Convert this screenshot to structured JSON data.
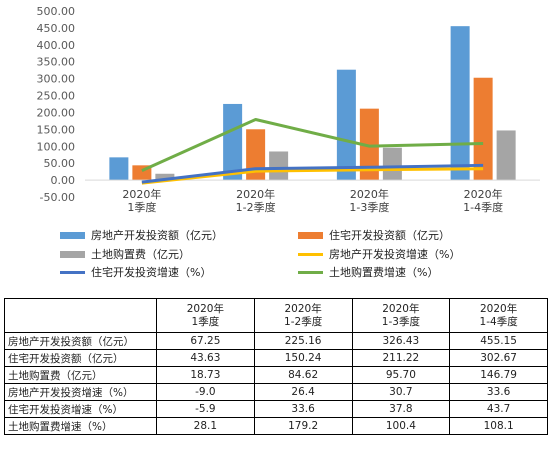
{
  "chart_data": {
    "type": "bar",
    "categories": [
      "2020年\n1季度",
      "2020年\n1-2季度",
      "2020年\n1-3季度",
      "2020年\n1-4季度"
    ],
    "y_ticks": [
      "500.00",
      "450.00",
      "400.00",
      "350.00",
      "300.00",
      "250.00",
      "200.00",
      "150.00",
      "100.00",
      "50.00",
      "0.00",
      "-50.00"
    ],
    "ylim": [
      -50,
      500
    ],
    "grid": false,
    "legend_position": "bottom",
    "bar_series": [
      {
        "name": "房地产开发投资额（亿元）",
        "color": "#5b9bd5",
        "values": [
          67.25,
          225.16,
          326.43,
          455.15
        ]
      },
      {
        "name": "住宅开发投资额（亿元）",
        "color": "#ed7d31",
        "values": [
          43.63,
          150.24,
          211.22,
          302.67
        ]
      },
      {
        "name": "土地购置费（亿元）",
        "color": "#a5a5a5",
        "values": [
          18.73,
          84.62,
          95.7,
          146.79
        ]
      }
    ],
    "line_series": [
      {
        "name": "房地产开发投资增速（%）",
        "color": "#ffc000",
        "values": [
          -9.0,
          26.4,
          30.7,
          33.6
        ]
      },
      {
        "name": "住宅开发投资增速（%）",
        "color": "#4472c4",
        "values": [
          -5.9,
          33.6,
          37.8,
          43.7
        ]
      },
      {
        "name": "土地购置费增速（%）",
        "color": "#70ad47",
        "values": [
          28.1,
          179.2,
          100.4,
          108.1
        ]
      }
    ]
  },
  "legend": [
    {
      "label": "房地产开发投资额（亿元）",
      "color": "#5b9bd5",
      "kind": "bar"
    },
    {
      "label": "住宅开发投资额（亿元）",
      "color": "#ed7d31",
      "kind": "bar"
    },
    {
      "label": "土地购置费（亿元）",
      "color": "#a5a5a5",
      "kind": "bar"
    },
    {
      "label": "房地产开发投资增速（%）",
      "color": "#ffc000",
      "kind": "line"
    },
    {
      "label": "住宅开发投资增速（%）",
      "color": "#4472c4",
      "kind": "line"
    },
    {
      "label": "土地购置费增速（%）",
      "color": "#70ad47",
      "kind": "line"
    }
  ],
  "table": {
    "headers": [
      "",
      "2020年\n1季度",
      "2020年\n1-2季度",
      "2020年\n1-3季度",
      "2020年\n1-4季度"
    ],
    "rows": [
      {
        "label": "房地产开发投资额（亿元）",
        "values": [
          "67.25",
          "225.16",
          "326.43",
          "455.15"
        ]
      },
      {
        "label": "住宅开发投资额（亿元）",
        "values": [
          "43.63",
          "150.24",
          "211.22",
          "302.67"
        ]
      },
      {
        "label": "土地购置费（亿元）",
        "values": [
          "18.73",
          "84.62",
          "95.70",
          "146.79"
        ]
      },
      {
        "label": "房地产开发投资增速（%）",
        "values": [
          "-9.0",
          "26.4",
          "30.7",
          "33.6"
        ]
      },
      {
        "label": "住宅开发投资增速（%）",
        "values": [
          "-5.9",
          "33.6",
          "37.8",
          "43.7"
        ]
      },
      {
        "label": "土地购置费增速（%）",
        "values": [
          "28.1",
          "179.2",
          "100.4",
          "108.1"
        ]
      }
    ]
  }
}
